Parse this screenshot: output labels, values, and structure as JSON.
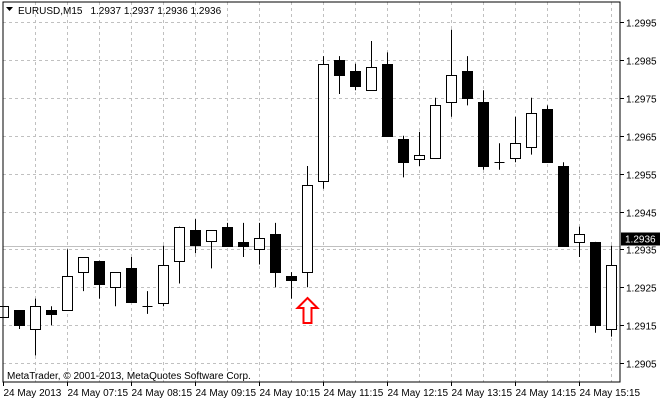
{
  "header": {
    "symbol": "EURUSD,M15",
    "ohlc_text": "1.2937 1.2937 1.2936 1.2936",
    "menu_icon": "triangle-down-icon"
  },
  "copyright": "MetaTrader, © 2001-2013, MetaQuotes Software Corp.",
  "colors": {
    "bull_body": "#ffffff",
    "bear_body": "#000000",
    "grid": "#c0c0c0",
    "bid_line": "#c0c0c0",
    "bid_label_bg": "#000000",
    "signal_arrow": "#ff0000"
  },
  "chart_data": {
    "type": "candlestick",
    "ylim": [
      1.29,
      1.3
    ],
    "grid": true,
    "y_ticks": [
      "1.2995",
      "1.2985",
      "1.2975",
      "1.2965",
      "1.2955",
      "1.2945",
      "1.2935",
      "1.2925",
      "1.2915",
      "1.2905"
    ],
    "x_ticks": [
      {
        "label": "24 May 2013",
        "at_candle": 0
      },
      {
        "label": "24 May 07:15",
        "at_candle": 4
      },
      {
        "label": "24 May 08:15",
        "at_candle": 8
      },
      {
        "label": "24 May 09:15",
        "at_candle": 12
      },
      {
        "label": "24 May 10:15",
        "at_candle": 16
      },
      {
        "label": "24 May 11:15",
        "at_candle": 20
      },
      {
        "label": "24 May 12:15",
        "at_candle": 24
      },
      {
        "label": "24 May 13:15",
        "at_candle": 28
      },
      {
        "label": "24 May 14:15",
        "at_candle": 32
      },
      {
        "label": "24 May 15:15",
        "at_candle": 36
      }
    ],
    "bid": "1.2936",
    "signal": {
      "type": "buy-arrow",
      "at_candle": 19,
      "price": 1.2923
    },
    "candles": [
      [
        1.2917,
        1.292,
        1.2917,
        1.292
      ],
      [
        1.2919,
        1.2919,
        1.2914,
        1.2915
      ],
      [
        1.2914,
        1.2922,
        1.2907,
        1.292
      ],
      [
        1.2919,
        1.292,
        1.2915,
        1.2918
      ],
      [
        1.2919,
        1.2935,
        1.2919,
        1.2928
      ],
      [
        1.2929,
        1.2933,
        1.2924,
        1.2933
      ],
      [
        1.2932,
        1.2932,
        1.2922,
        1.2926
      ],
      [
        1.2925,
        1.2929,
        1.292,
        1.2929
      ],
      [
        1.293,
        1.2933,
        1.2921,
        1.2921
      ],
      [
        1.292,
        1.2924,
        1.2918,
        1.292
      ],
      [
        1.2921,
        1.2936,
        1.292,
        1.2931
      ],
      [
        1.2932,
        1.2941,
        1.2926,
        1.2941
      ],
      [
        1.294,
        1.2943,
        1.2934,
        1.2936
      ],
      [
        1.2937,
        1.294,
        1.293,
        1.294
      ],
      [
        1.2941,
        1.2942,
        1.2936,
        1.2936
      ],
      [
        1.2937,
        1.2942,
        1.2933,
        1.2936
      ],
      [
        1.2935,
        1.2942,
        1.2931,
        1.2938
      ],
      [
        1.2939,
        1.2942,
        1.2925,
        1.2929
      ],
      [
        1.2928,
        1.2929,
        1.2922,
        1.2927
      ],
      [
        1.2929,
        1.2957,
        1.2925,
        1.2952
      ],
      [
        1.2953,
        1.2986,
        1.2951,
        1.2984
      ],
      [
        1.2985,
        1.2986,
        1.2976,
        1.2981
      ],
      [
        1.2982,
        1.2984,
        1.2977,
        1.2978
      ],
      [
        1.2977,
        1.299,
        1.2977,
        1.2983
      ],
      [
        1.2984,
        1.2987,
        1.2965,
        1.2965
      ],
      [
        1.2964,
        1.2965,
        1.2954,
        1.2958
      ],
      [
        1.2959,
        1.2966,
        1.2957,
        1.296
      ],
      [
        1.2959,
        1.2975,
        1.2959,
        1.2973
      ],
      [
        1.2974,
        1.2993,
        1.297,
        1.2981
      ],
      [
        1.2982,
        1.2986,
        1.2973,
        1.2975
      ],
      [
        1.2974,
        1.2977,
        1.2956,
        1.2957
      ],
      [
        1.2958,
        1.2963,
        1.2956,
        1.2958
      ],
      [
        1.2959,
        1.297,
        1.2958,
        1.2963
      ],
      [
        1.2962,
        1.2975,
        1.296,
        1.2971
      ],
      [
        1.2972,
        1.2973,
        1.2958,
        1.2958
      ],
      [
        1.2957,
        1.2958,
        1.2936,
        1.2936
      ],
      [
        1.2937,
        1.2941,
        1.2933,
        1.2939
      ],
      [
        1.2937,
        1.2937,
        1.2913,
        1.2915
      ],
      [
        1.2914,
        1.2936,
        1.2912,
        1.2931
      ]
    ],
    "candle_format": [
      "open",
      "high",
      "low",
      "close"
    ]
  }
}
